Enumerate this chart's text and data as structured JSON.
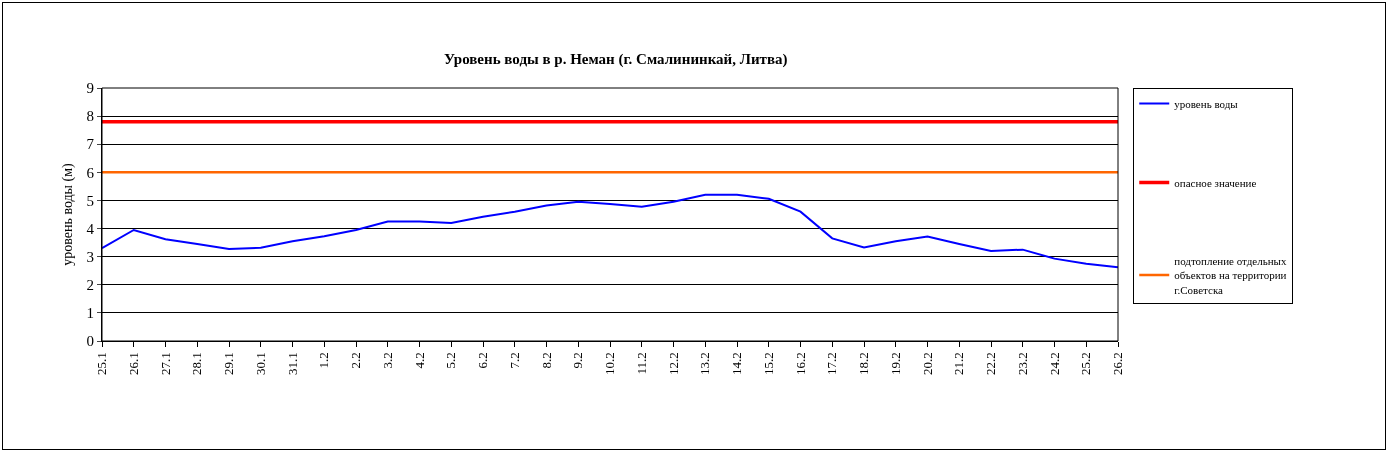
{
  "chart_data": {
    "type": "line",
    "title": "Уровень воды в р. Неман (г. Смалининкай, Литва)",
    "ylabel": "уровень воды (м)",
    "categories": [
      "25.1",
      "26.1",
      "27.1",
      "28.1",
      "29.1",
      "30.1",
      "31.1",
      "1.2",
      "2.2",
      "3.2",
      "4.2",
      "5.2",
      "6.2",
      "7.2",
      "8.2",
      "9.2",
      "10.2",
      "11.2",
      "12.2",
      "13.2",
      "14.2",
      "15.2",
      "16.2",
      "17.2",
      "18.2",
      "19.2",
      "20.2",
      "21.2",
      "22.2",
      "23.2",
      "24.2",
      "25.2",
      "26.2"
    ],
    "series": [
      {
        "name": "уровень воды",
        "color": "#0000ff",
        "values": [
          3.3,
          3.95,
          3.62,
          3.45,
          3.27,
          3.32,
          3.55,
          3.73,
          3.95,
          4.25,
          4.25,
          4.2,
          4.42,
          4.6,
          4.82,
          4.95,
          4.87,
          4.78,
          4.95,
          5.2,
          5.2,
          5.06,
          4.6,
          3.65,
          3.33,
          3.55,
          3.72,
          3.45,
          3.2,
          3.25,
          2.93,
          2.75,
          2.62
        ]
      },
      {
        "name": "опасное значение",
        "color": "#ff0000",
        "values": [
          7.8,
          7.8,
          7.8,
          7.8,
          7.8,
          7.8,
          7.8,
          7.8,
          7.8,
          7.8,
          7.8,
          7.8,
          7.8,
          7.8,
          7.8,
          7.8,
          7.8,
          7.8,
          7.8,
          7.8,
          7.8,
          7.8,
          7.8,
          7.8,
          7.8,
          7.8,
          7.8,
          7.8,
          7.8,
          7.8,
          7.8,
          7.8,
          7.8
        ]
      },
      {
        "name": "подтопление отдельных объектов на территории г.Советска",
        "color": "#ff6600",
        "values": [
          6,
          6,
          6,
          6,
          6,
          6,
          6,
          6,
          6,
          6,
          6,
          6,
          6,
          6,
          6,
          6,
          6,
          6,
          6,
          6,
          6,
          6,
          6,
          6,
          6,
          6,
          6,
          6,
          6,
          6,
          6,
          6,
          6
        ]
      }
    ],
    "ylim": [
      0,
      9
    ],
    "yticks": [
      0,
      1,
      2,
      3,
      4,
      5,
      6,
      7,
      8,
      9
    ],
    "grid": "y",
    "legend": "right",
    "marker": "none",
    "line_style": "solid"
  }
}
